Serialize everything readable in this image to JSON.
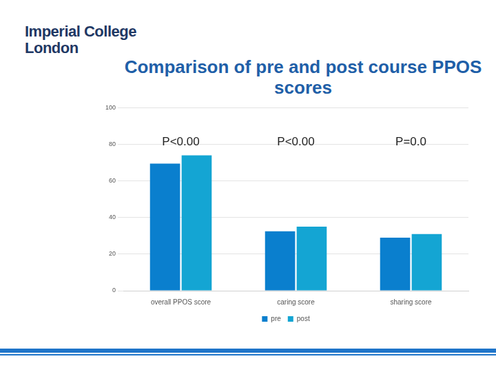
{
  "header": {
    "logo": [
      "Imperial College",
      "London"
    ]
  },
  "chart_data": {
    "type": "bar",
    "title": "Comparison of pre and post course PPOS scores",
    "categories": [
      "overall PPOS score",
      "caring score",
      "sharing score"
    ],
    "series": [
      {
        "name": "pre",
        "color": "#0a7fce",
        "values": [
          69.5,
          32.5,
          29
        ]
      },
      {
        "name": "post",
        "color": "#14a5d3",
        "values": [
          74,
          35,
          31
        ]
      }
    ],
    "annotations": [
      {
        "category": "overall PPOS score",
        "text": "P<0.00"
      },
      {
        "category": "caring score",
        "text": "P<0.00"
      },
      {
        "category": "sharing score",
        "text": "P=0.0"
      }
    ],
    "ylim": [
      0,
      100
    ],
    "yticks": [
      0,
      20,
      40,
      60,
      80,
      100
    ],
    "grid": true,
    "legend": "bottom"
  }
}
